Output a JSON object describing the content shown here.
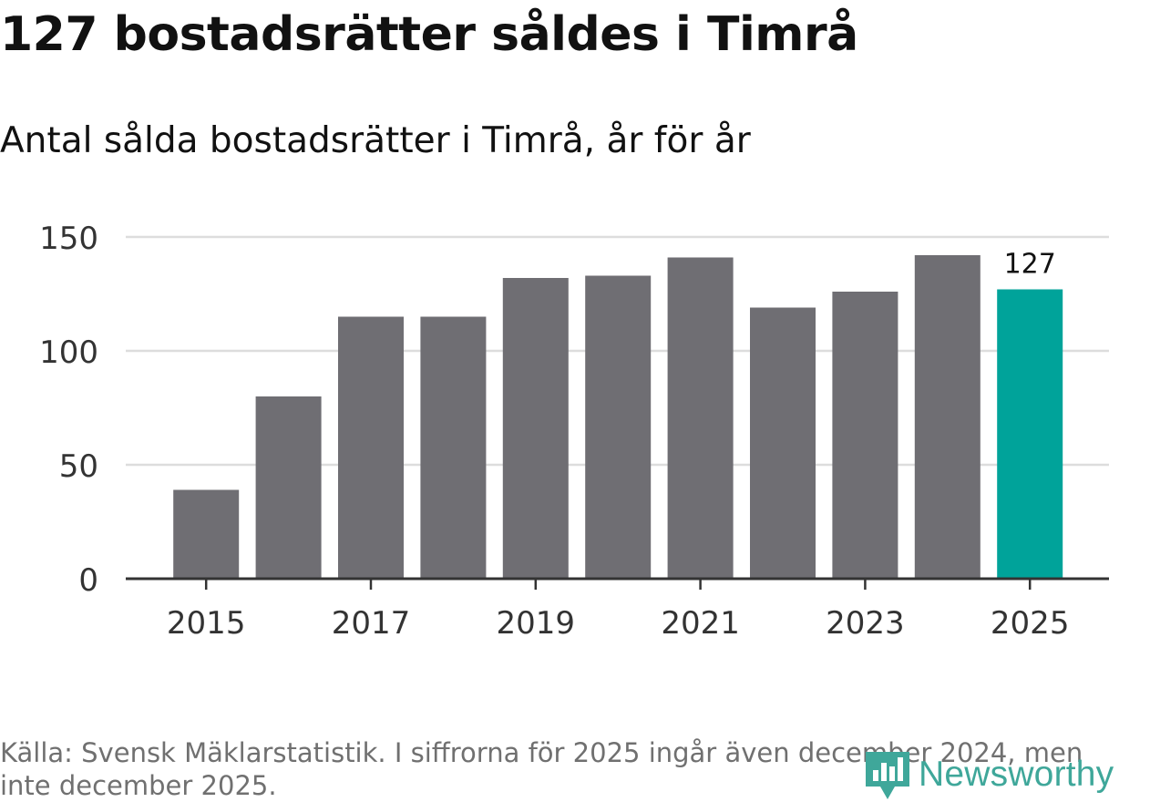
{
  "header": {
    "title": "127 bostadsrätter såldes i Timrå",
    "subtitle": "Antal sålda bostadsrätter i Timrå, år för år"
  },
  "footer": {
    "source_note": "Källa: Svensk Mäklarstatistik. I siffrorna för 2025 ingår även december 2024, men inte december 2025.",
    "logo_text": "Newsworthy"
  },
  "colors": {
    "bar": "#6f6e73",
    "highlight": "#00a39a",
    "grid": "#dddddd",
    "axis": "#333333",
    "logo": "#3fa79a"
  },
  "chart_data": {
    "type": "bar",
    "title": "127 bostadsrätter såldes i Timrå",
    "subtitle": "Antal sålda bostadsrätter i Timrå, år för år",
    "xlabel": "",
    "ylabel": "",
    "categories": [
      "2015",
      "2016",
      "2017",
      "2018",
      "2019",
      "2020",
      "2021",
      "2022",
      "2023",
      "2024",
      "2025"
    ],
    "values": [
      39,
      80,
      115,
      115,
      132,
      133,
      141,
      119,
      126,
      142,
      127
    ],
    "ylim": [
      0,
      150
    ],
    "yticks": [
      0,
      50,
      100,
      150
    ],
    "xtick_labels": [
      "2015",
      "2017",
      "2019",
      "2021",
      "2023",
      "2025"
    ],
    "highlight_category": "2025",
    "data_labels": [
      {
        "category": "2025",
        "text": "127"
      }
    ],
    "grid": true,
    "legend": "none"
  }
}
